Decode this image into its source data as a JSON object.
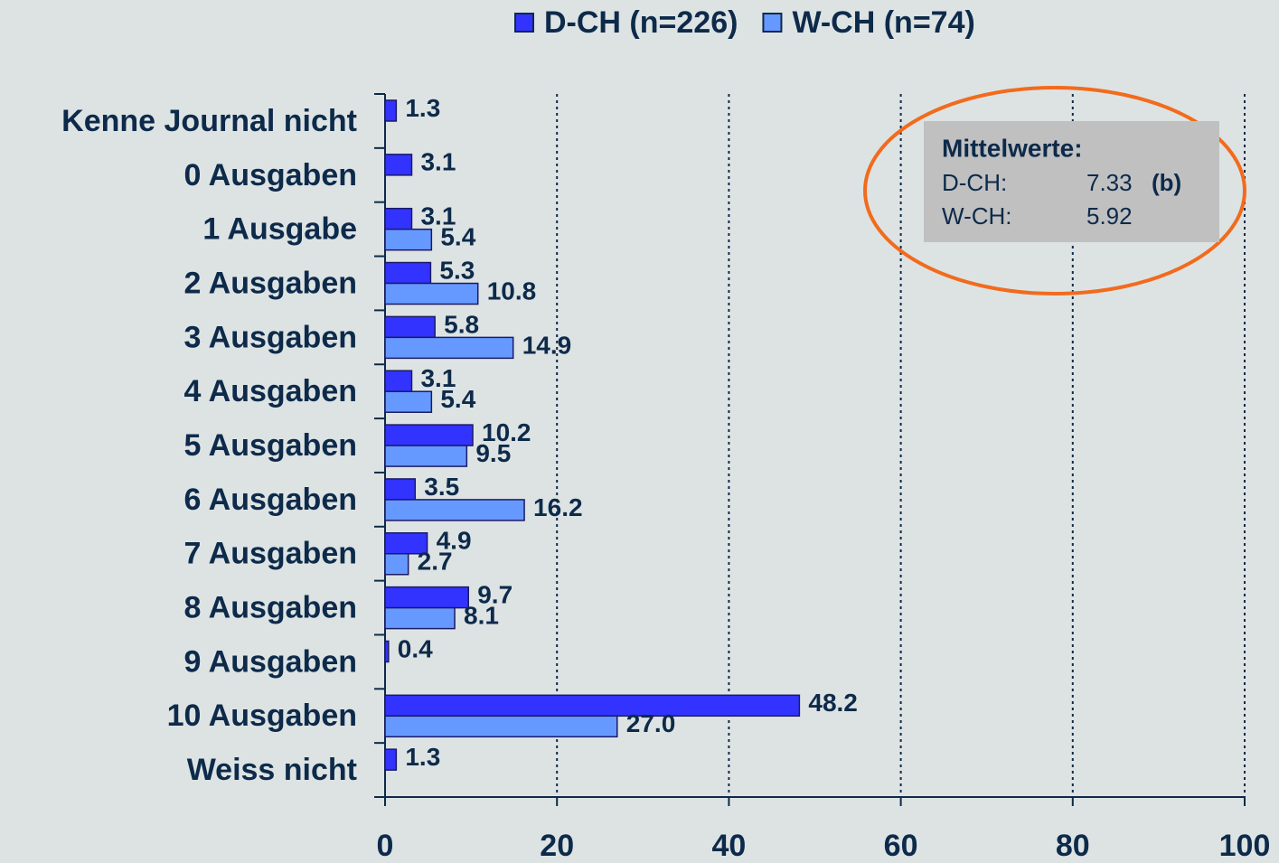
{
  "chart_data": {
    "type": "hbar",
    "categories": [
      "Kenne Journal nicht",
      "0 Ausgaben",
      "1 Ausgabe",
      "2 Ausgaben",
      "3 Ausgaben",
      "4 Ausgaben",
      "5 Ausgaben",
      "6 Ausgaben",
      "7 Ausgaben",
      "8 Ausgaben",
      "9 Ausgaben",
      "10 Ausgaben",
      "Weiss nicht"
    ],
    "series": [
      {
        "name": "D-CH (n=226)",
        "color": "#3333ff",
        "values": [
          1.3,
          3.1,
          3.1,
          5.3,
          5.8,
          3.1,
          10.2,
          3.5,
          4.9,
          9.7,
          0.4,
          48.2,
          1.3
        ]
      },
      {
        "name": "W-CH (n=74)",
        "color": "#6699ff",
        "values": [
          null,
          null,
          5.4,
          10.8,
          14.9,
          5.4,
          9.5,
          16.2,
          2.7,
          8.1,
          null,
          27.0,
          null
        ],
        "value_labels": [
          null,
          null,
          "5.4",
          "10.8",
          "14.9",
          "5.4",
          "9.5",
          "16.2",
          "2.7",
          "8.1",
          null,
          "27.0",
          null
        ]
      }
    ],
    "xlim": [
      0,
      100
    ],
    "xticks": [
      0,
      20,
      40,
      60,
      80,
      100
    ],
    "grid": true,
    "legend": "top",
    "annotation": {
      "title": "Mittelwerte:",
      "rows": [
        [
          "D-CH:",
          "7.33",
          "(b)"
        ],
        [
          "W-CH:",
          "5.92"
        ]
      ]
    }
  }
}
